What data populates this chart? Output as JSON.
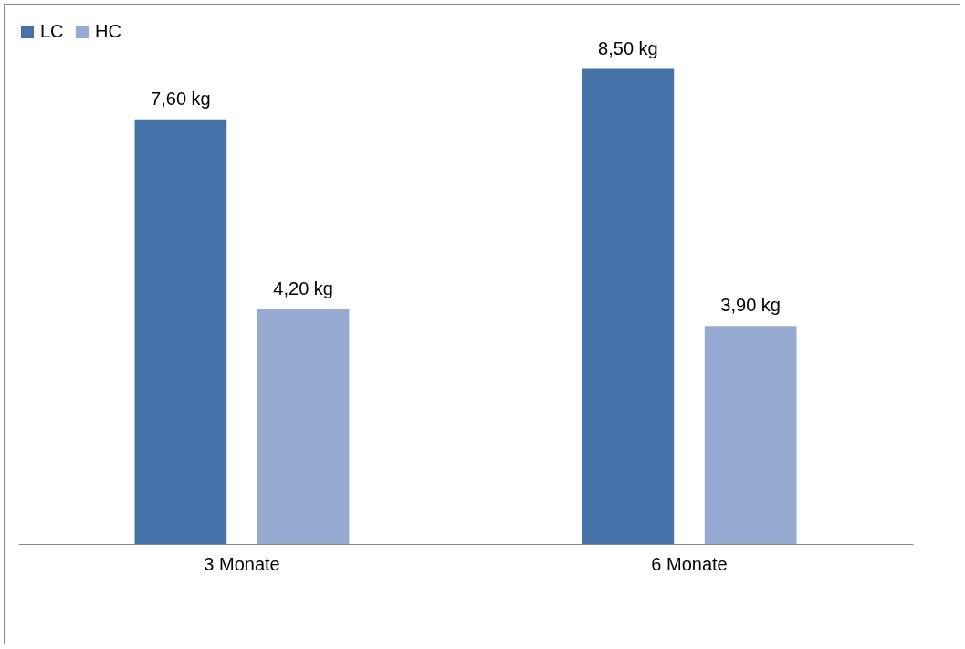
{
  "chart_data": {
    "type": "bar",
    "categories": [
      "3 Monate",
      "6 Monate"
    ],
    "series": [
      {
        "name": "LC",
        "color": "#4573a7",
        "values": [
          7.6,
          8.5
        ],
        "value_labels": [
          "7,60 kg",
          "8,50 kg"
        ]
      },
      {
        "name": "HC",
        "color": "#97aad1",
        "values": [
          4.2,
          3.9
        ],
        "value_labels": [
          "4,20 kg",
          "3,90 kg"
        ]
      }
    ],
    "legend": "top",
    "grid": false
  }
}
